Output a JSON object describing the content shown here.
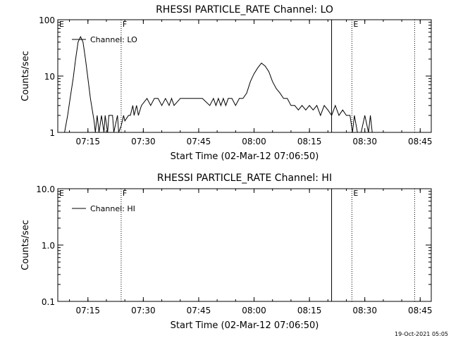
{
  "chart_data": [
    {
      "type": "line",
      "title": "RHESSI PARTICLE_RATE Channel: LO",
      "xlabel": "Start Time (02-Mar-12 07:06:50)",
      "ylabel": "Counts/sec",
      "y_scale": "log",
      "ylim": [
        1,
        100
      ],
      "xlim": [
        "07:06:50",
        "08:48:00"
      ],
      "x_tick_labels": [
        "07:15",
        "07:30",
        "07:45",
        "08:00",
        "08:15",
        "08:30",
        "08:45"
      ],
      "y_tick_labels": [
        "1",
        "10",
        "100"
      ],
      "legend": {
        "entries": [
          "Channel: LO"
        ],
        "placement": "top-left"
      },
      "markers": [
        {
          "label": "E",
          "time": "07:06:50",
          "style": "none"
        },
        {
          "label": "F",
          "time": "07:24:00",
          "style": "dotted"
        },
        {
          "label": "",
          "time": "08:21:00",
          "style": "solid"
        },
        {
          "label": "E",
          "time": "08:26:30",
          "style": "dotted"
        },
        {
          "label": "",
          "time": "08:43:30",
          "style": "dotted"
        }
      ],
      "series": [
        {
          "name": "Channel: LO",
          "x": [
            "07:07:30",
            "07:08:40",
            "07:09:30",
            "07:10:10",
            "07:11:00",
            "07:11:40",
            "07:12:20",
            "07:13:00",
            "07:13:40",
            "07:14:20",
            "07:15:00",
            "07:15:40",
            "07:16:40",
            "07:17:00",
            "07:17:30",
            "07:18:00",
            "07:18:40",
            "07:19:20",
            "07:19:40",
            "07:20:20",
            "07:20:40",
            "07:21:40",
            "07:22:00",
            "07:23:00",
            "07:23:20",
            "07:24:00",
            "07:24:40",
            "07:25:00",
            "07:26:00",
            "07:26:30",
            "07:27:10",
            "07:27:30",
            "07:28:10",
            "07:28:40",
            "07:29:30",
            "07:31:00",
            "07:32:00",
            "07:33:00",
            "07:34:00",
            "07:35:00",
            "07:36:00",
            "07:37:00",
            "07:37:40",
            "07:38:20",
            "07:40:00",
            "07:42:00",
            "07:44:00",
            "07:46:00",
            "07:48:00",
            "07:49:00",
            "07:49:40",
            "07:50:20",
            "07:51:00",
            "07:51:40",
            "07:52:20",
            "07:53:00",
            "07:54:00",
            "07:55:00",
            "07:56:00",
            "07:57:00",
            "07:58:00",
            "07:59:00",
            "08:00:00",
            "08:01:00",
            "08:02:00",
            "08:03:00",
            "08:04:00",
            "08:05:00",
            "08:06:00",
            "08:07:00",
            "08:08:00",
            "08:09:00",
            "08:10:00",
            "08:11:00",
            "08:12:00",
            "08:13:00",
            "08:14:00",
            "08:15:00",
            "08:16:00",
            "08:17:00",
            "08:18:00",
            "08:19:00",
            "08:20:00",
            "08:21:00",
            "08:22:00",
            "08:23:00",
            "08:24:00",
            "08:25:00",
            "08:26:00",
            "08:26:40",
            "08:27:10",
            "08:28:00",
            "08:29:00",
            "08:30:00",
            "08:31:00",
            "08:31:30",
            "08:32:00"
          ],
          "values": [
            1,
            1,
            2,
            4,
            9,
            20,
            40,
            50,
            40,
            20,
            9,
            4,
            1.6,
            1,
            2,
            1,
            2,
            1,
            2,
            1,
            2,
            2,
            1,
            2,
            1,
            1.3,
            2,
            1.6,
            2,
            2,
            3,
            2,
            3,
            2,
            3,
            4,
            3,
            4,
            4,
            3,
            4,
            3,
            4,
            3,
            4,
            4,
            4,
            4,
            3,
            4,
            3,
            4,
            3,
            4,
            3,
            4,
            4,
            3,
            4,
            4,
            5,
            8,
            11,
            14,
            17,
            15,
            12,
            8,
            6,
            5,
            4,
            4,
            3,
            3,
            2.5,
            3,
            2.5,
            3,
            2.5,
            3,
            2,
            3,
            2.5,
            2,
            3,
            2,
            2.5,
            2,
            2,
            1,
            2,
            1,
            1,
            2,
            1,
            2,
            1
          ]
        }
      ]
    },
    {
      "type": "line",
      "title": "RHESSI PARTICLE_RATE Channel: HI",
      "xlabel": "Start Time (02-Mar-12 07:06:50)",
      "ylabel": "Counts/sec",
      "y_scale": "log",
      "ylim": [
        0.1,
        10
      ],
      "xlim": [
        "07:06:50",
        "08:48:00"
      ],
      "x_tick_labels": [
        "07:15",
        "07:30",
        "07:45",
        "08:00",
        "08:15",
        "08:30",
        "08:45"
      ],
      "y_tick_labels": [
        "0.1",
        "1.0",
        "10.0"
      ],
      "legend": {
        "entries": [
          "Channel: HI"
        ],
        "placement": "top-left"
      },
      "markers": [
        {
          "label": "E",
          "time": "07:06:50",
          "style": "none"
        },
        {
          "label": "F",
          "time": "07:24:00",
          "style": "dotted"
        },
        {
          "label": "",
          "time": "08:21:00",
          "style": "solid"
        },
        {
          "label": "E",
          "time": "08:26:30",
          "style": "dotted"
        },
        {
          "label": "",
          "time": "08:43:30",
          "style": "dotted"
        }
      ],
      "series": [
        {
          "name": "Channel: HI",
          "x": [],
          "values": []
        }
      ]
    }
  ],
  "footer": {
    "timestamp": "19-Oct-2021 05:05"
  }
}
